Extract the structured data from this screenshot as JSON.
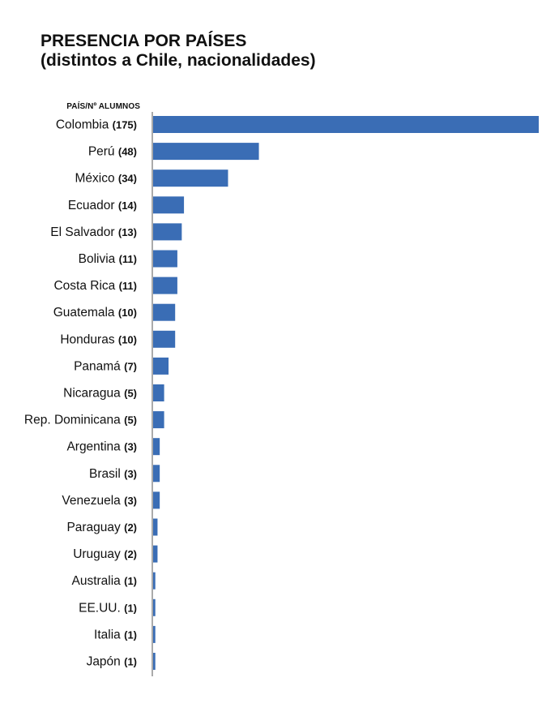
{
  "title": "PRESENCIA POR PAÍSES",
  "subtitle": "(distintos a Chile, nacionalidades)",
  "column_header": "PAÍS/Nº ALUMNOS",
  "colors": {
    "bar": "#3a6db5",
    "axis": "#555555"
  },
  "chart_data": {
    "type": "bar",
    "orientation": "horizontal",
    "title": "PRESENCIA POR PAÍSES",
    "subtitle": "(distintos a Chile, nacionalidades)",
    "ylabel": "PAÍS/Nº ALUMNOS",
    "xlim": [
      0,
      175
    ],
    "grid": false,
    "categories": [
      "Colombia",
      "Perú",
      "México",
      "Ecuador",
      "El Salvador",
      "Bolivia",
      "Costa Rica",
      "Guatemala",
      "Honduras",
      "Panamá",
      "Nicaragua",
      "Rep. Dominicana",
      "Argentina",
      "Brasil",
      "Venezuela",
      "Paraguay",
      "Uruguay",
      "Australia",
      "EE.UU.",
      "Italia",
      "Japón"
    ],
    "values": [
      175,
      48,
      34,
      14,
      13,
      11,
      11,
      10,
      10,
      7,
      5,
      5,
      3,
      3,
      3,
      2,
      2,
      1,
      1,
      1,
      1
    ],
    "value_labels": [
      "(175)",
      "(48)",
      "(34)",
      "(14)",
      "(13)",
      "(11)",
      "(11)",
      "(10)",
      "(10)",
      "(7)",
      "(5)",
      "(5)",
      "(3)",
      "(3)",
      "(3)",
      "(2)",
      "(2)",
      "(1)",
      "(1)",
      "(1)",
      "(1)"
    ]
  }
}
